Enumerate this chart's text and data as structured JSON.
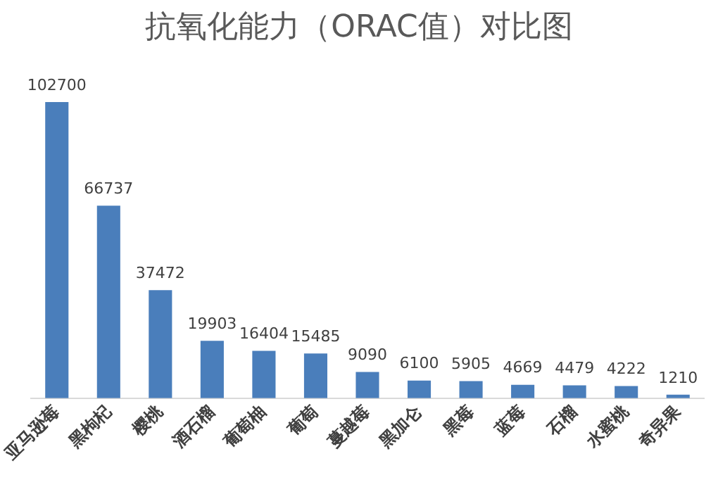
{
  "chart_data": {
    "type": "bar",
    "title": "抗氧化能力（ORAC值）对比图",
    "categories": [
      "亚马逊莓",
      "黑枸杞",
      "樱桃",
      "酒石榴",
      "葡萄柚",
      "葡萄",
      "蔓越莓",
      "黑加仑",
      "黑莓",
      "蓝莓",
      "石榴",
      "水蜜桃",
      "奇异果"
    ],
    "values": [
      102700,
      66737,
      37472,
      19903,
      16404,
      15485,
      9090,
      6100,
      5905,
      4669,
      4479,
      4222,
      1210
    ],
    "color": "#4a7ebb",
    "data_labels": true,
    "grid": false,
    "legend": false,
    "tick_labels": "x"
  }
}
